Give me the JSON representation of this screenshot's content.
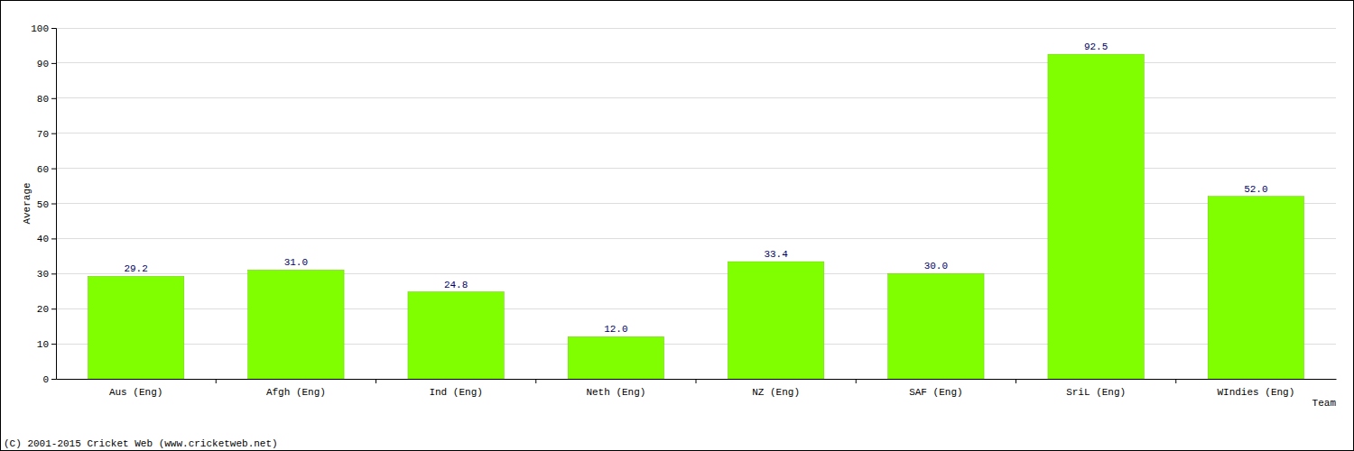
{
  "chart_data": {
    "type": "bar",
    "x_label": "Team",
    "y_label": "Average",
    "annotations": [
      "(C) 2001-2015 Cricket Web (www.cricketweb.net)"
    ],
    "categories": [
      "Aus (Eng)",
      "Afgh (Eng)",
      "Ind (Eng)",
      "Neth (Eng)",
      "NZ (Eng)",
      "SAF (Eng)",
      "SriL (Eng)",
      "WIndies (Eng)"
    ],
    "values": [
      29.2,
      31.0,
      24.8,
      12.0,
      33.4,
      30.0,
      92.5,
      52.0
    ],
    "value_labels": [
      "29.2",
      "31.0",
      "24.8",
      "12.0",
      "33.4",
      "30.0",
      "92.5",
      "52.0"
    ],
    "color": "#7fff00",
    "ylim": [
      0,
      100
    ],
    "yticks": [
      0,
      10,
      20,
      30,
      40,
      50,
      60,
      70,
      80,
      90,
      100
    ],
    "grid": true,
    "data_labels": true
  }
}
